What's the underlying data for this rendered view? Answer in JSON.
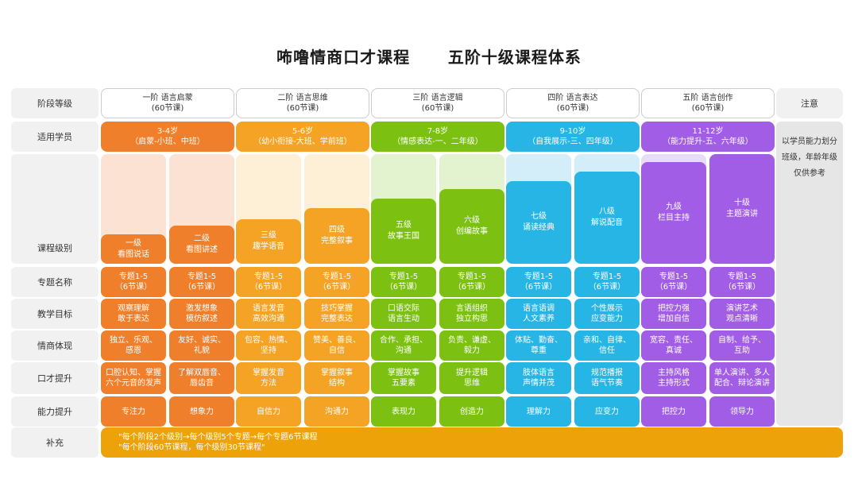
{
  "title": "咘噜情商口才课程      五阶十级课程体系",
  "row_labels": [
    "阶段等级",
    "适用学员",
    "课程级别",
    "专题名称",
    "教学目标",
    "情商体现",
    "口才提升",
    "能力提升",
    "补充"
  ],
  "note_header": "注意",
  "note_text": "以学员能力划分班级，年龄年级仅供参考",
  "colors": {
    "orange": "#f07f2b",
    "amber": "#f5a325",
    "green": "#7cc012",
    "blue": "#27b5e6",
    "purple": "#a15de5",
    "supplement": "#eea20a"
  },
  "stages": [
    {
      "name": "一阶 语言启蒙",
      "count": "(60节课)",
      "age": "3-4岁",
      "age_desc": "（启蒙-小班、中班）",
      "color": "#f07f2b",
      "light": "#fbe2d2"
    },
    {
      "name": "二阶 语言思维",
      "count": "(60节课)",
      "age": "5-6岁",
      "age_desc": "（幼小衔接-大班、学前班）",
      "color": "#f5a325",
      "light": "#fdf0d6"
    },
    {
      "name": "三阶 语言逻辑",
      "count": "(60节课)",
      "age": "7-8岁",
      "age_desc": "（情感表达-一、二年级）",
      "color": "#7cc012",
      "light": "#e3f2cf"
    },
    {
      "name": "四阶 语言表达",
      "count": "(60节课)",
      "age": "9-10岁",
      "age_desc": "（自我展示-三、四年级）",
      "color": "#27b5e6",
      "light": "#d4eef9"
    },
    {
      "name": "五阶 语言创作",
      "count": "(60节课)",
      "age": "11-12岁",
      "age_desc": "（能力提升-五、六年级）",
      "color": "#a15de5",
      "light": "#e9dcf8"
    }
  ],
  "levels": [
    {
      "l1": "一级",
      "l2": "看图说话",
      "topic1": "专题1-5",
      "topic2": "（6节课）",
      "goal1": "观察理解",
      "goal2": "敢于表达",
      "eq1": "独立、乐观、",
      "eq2": "感恩",
      "speech1": "口腔认知、掌握",
      "speech2": "六个元音的发声",
      "ability": "专注力"
    },
    {
      "l1": "二级",
      "l2": "看图讲述",
      "topic1": "专题1-5",
      "topic2": "（6节课）",
      "goal1": "激发想象",
      "goal2": "模仿叙述",
      "eq1": "友好、诚实、",
      "eq2": "礼貌",
      "speech1": "了解双唇音、",
      "speech2": "唇齿音",
      "ability": "想象力"
    },
    {
      "l1": "三级",
      "l2": "趣学语音",
      "topic1": "专题1-5",
      "topic2": "（6节课）",
      "goal1": "语言发音",
      "goal2": "高效沟通",
      "eq1": "包容、热情、",
      "eq2": "坚持",
      "speech1": "掌握发音",
      "speech2": "方法",
      "ability": "自信力"
    },
    {
      "l1": "四级",
      "l2": "完整叙事",
      "topic1": "专题1-5",
      "topic2": "（6节课）",
      "goal1": "技巧掌握",
      "goal2": "完整表达",
      "eq1": "赞美、善良、",
      "eq2": "自信",
      "speech1": "掌握叙事",
      "speech2": "结构",
      "ability": "沟通力"
    },
    {
      "l1": "五级",
      "l2": "故事王国",
      "topic1": "专题1-5",
      "topic2": "（6节课）",
      "goal1": "口语交际",
      "goal2": "语言生动",
      "eq1": "合作、承担、",
      "eq2": "沟通",
      "speech1": "掌握故事",
      "speech2": "五要素",
      "ability": "表现力"
    },
    {
      "l1": "六级",
      "l2": "创编故事",
      "topic1": "专题1-5",
      "topic2": "（6节课）",
      "goal1": "言语组织",
      "goal2": "独立构思",
      "eq1": "负责、谦虚、",
      "eq2": "毅力",
      "speech1": "提升逻辑",
      "speech2": "思维",
      "ability": "创造力"
    },
    {
      "l1": "七级",
      "l2": "诵读经典",
      "topic1": "专题1-5",
      "topic2": "（6节课）",
      "goal1": "语言语调",
      "goal2": "人文素养",
      "eq1": "体贴、勤奋、",
      "eq2": "尊重",
      "speech1": "肢体语言",
      "speech2": "声情并茂",
      "ability": "理解力"
    },
    {
      "l1": "八级",
      "l2": "解说配音",
      "topic1": "专题1-5",
      "topic2": "（6节课）",
      "goal1": "个性展示",
      "goal2": "应变能力",
      "eq1": "亲和、自律、",
      "eq2": "信任",
      "speech1": "规范播报",
      "speech2": "语气节奏",
      "ability": "应变力"
    },
    {
      "l1": "九级",
      "l2": "栏目主持",
      "topic1": "专题1-5",
      "topic2": "（6节课）",
      "goal1": "把控力强",
      "goal2": "增加自信",
      "eq1": "宽容、责任、",
      "eq2": "真诚",
      "speech1": "主持风格",
      "speech2": "主持形式",
      "ability": "把控力"
    },
    {
      "l1": "十级",
      "l2": "主题演讲",
      "topic1": "专题1-5",
      "topic2": "（6节课）",
      "goal1": "演讲艺术",
      "goal2": "观点清晰",
      "eq1": "自制、给予、",
      "eq2": "互助",
      "speech1": "单人演讲、多人",
      "speech2": "配合、辩论演讲",
      "ability": "领导力"
    }
  ],
  "supplement": [
    "\"每个阶段2个级别→每个级别5个专题→每个专题6节课程",
    "\"每个阶段60节课程，每个级别30节课程\""
  ]
}
